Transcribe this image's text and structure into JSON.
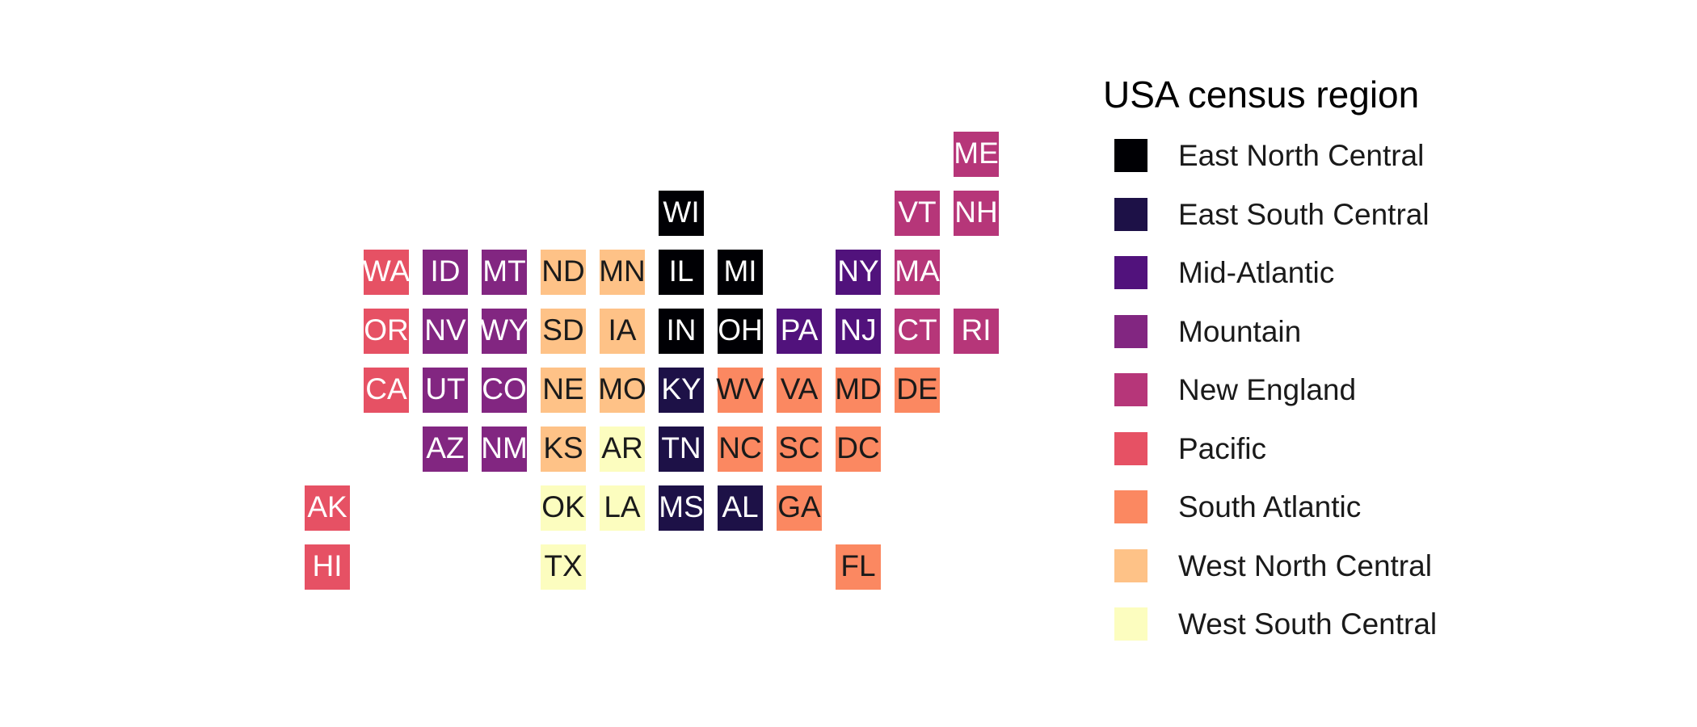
{
  "legend": {
    "title": "USA census region",
    "items": [
      {
        "label": "East North Central",
        "color": "#000004",
        "text_color": "#ffffff"
      },
      {
        "label": "East South Central",
        "color": "#1D1147",
        "text_color": "#ffffff"
      },
      {
        "label": "Mid-Atlantic",
        "color": "#51127C",
        "text_color": "#ffffff"
      },
      {
        "label": "Mountain",
        "color": "#822681",
        "text_color": "#ffffff"
      },
      {
        "label": "New England",
        "color": "#B63679",
        "text_color": "#ffffff"
      },
      {
        "label": "Pacific",
        "color": "#E65164",
        "text_color": "#ffffff"
      },
      {
        "label": "South Atlantic",
        "color": "#FB8861",
        "text_color": "#1a1a1a"
      },
      {
        "label": "West North Central",
        "color": "#FEC287",
        "text_color": "#1a1a1a"
      },
      {
        "label": "West South Central",
        "color": "#FCFDBF",
        "text_color": "#1a1a1a"
      }
    ]
  },
  "tiles": [
    {
      "abbr": "ME",
      "region": "New England",
      "col": 11,
      "row": 0
    },
    {
      "abbr": "WI",
      "region": "East North Central",
      "col": 6,
      "row": 1
    },
    {
      "abbr": "VT",
      "region": "New England",
      "col": 10,
      "row": 1
    },
    {
      "abbr": "NH",
      "region": "New England",
      "col": 11,
      "row": 1
    },
    {
      "abbr": "WA",
      "region": "Pacific",
      "col": 1,
      "row": 2
    },
    {
      "abbr": "ID",
      "region": "Mountain",
      "col": 2,
      "row": 2
    },
    {
      "abbr": "MT",
      "region": "Mountain",
      "col": 3,
      "row": 2
    },
    {
      "abbr": "ND",
      "region": "West North Central",
      "col": 4,
      "row": 2
    },
    {
      "abbr": "MN",
      "region": "West North Central",
      "col": 5,
      "row": 2
    },
    {
      "abbr": "IL",
      "region": "East North Central",
      "col": 6,
      "row": 2
    },
    {
      "abbr": "MI",
      "region": "East North Central",
      "col": 7,
      "row": 2
    },
    {
      "abbr": "NY",
      "region": "Mid-Atlantic",
      "col": 9,
      "row": 2
    },
    {
      "abbr": "MA",
      "region": "New England",
      "col": 10,
      "row": 2
    },
    {
      "abbr": "OR",
      "region": "Pacific",
      "col": 1,
      "row": 3
    },
    {
      "abbr": "NV",
      "region": "Mountain",
      "col": 2,
      "row": 3
    },
    {
      "abbr": "WY",
      "region": "Mountain",
      "col": 3,
      "row": 3
    },
    {
      "abbr": "SD",
      "region": "West North Central",
      "col": 4,
      "row": 3
    },
    {
      "abbr": "IA",
      "region": "West North Central",
      "col": 5,
      "row": 3
    },
    {
      "abbr": "IN",
      "region": "East North Central",
      "col": 6,
      "row": 3
    },
    {
      "abbr": "OH",
      "region": "East North Central",
      "col": 7,
      "row": 3
    },
    {
      "abbr": "PA",
      "region": "Mid-Atlantic",
      "col": 8,
      "row": 3
    },
    {
      "abbr": "NJ",
      "region": "Mid-Atlantic",
      "col": 9,
      "row": 3
    },
    {
      "abbr": "CT",
      "region": "New England",
      "col": 10,
      "row": 3
    },
    {
      "abbr": "RI",
      "region": "New England",
      "col": 11,
      "row": 3
    },
    {
      "abbr": "CA",
      "region": "Pacific",
      "col": 1,
      "row": 4
    },
    {
      "abbr": "UT",
      "region": "Mountain",
      "col": 2,
      "row": 4
    },
    {
      "abbr": "CO",
      "region": "Mountain",
      "col": 3,
      "row": 4
    },
    {
      "abbr": "NE",
      "region": "West North Central",
      "col": 4,
      "row": 4
    },
    {
      "abbr": "MO",
      "region": "West North Central",
      "col": 5,
      "row": 4
    },
    {
      "abbr": "KY",
      "region": "East South Central",
      "col": 6,
      "row": 4
    },
    {
      "abbr": "WV",
      "region": "South Atlantic",
      "col": 7,
      "row": 4
    },
    {
      "abbr": "VA",
      "region": "South Atlantic",
      "col": 8,
      "row": 4
    },
    {
      "abbr": "MD",
      "region": "South Atlantic",
      "col": 9,
      "row": 4
    },
    {
      "abbr": "DE",
      "region": "South Atlantic",
      "col": 10,
      "row": 4
    },
    {
      "abbr": "AZ",
      "region": "Mountain",
      "col": 2,
      "row": 5
    },
    {
      "abbr": "NM",
      "region": "Mountain",
      "col": 3,
      "row": 5
    },
    {
      "abbr": "KS",
      "region": "West North Central",
      "col": 4,
      "row": 5
    },
    {
      "abbr": "AR",
      "region": "West South Central",
      "col": 5,
      "row": 5
    },
    {
      "abbr": "TN",
      "region": "East South Central",
      "col": 6,
      "row": 5
    },
    {
      "abbr": "NC",
      "region": "South Atlantic",
      "col": 7,
      "row": 5
    },
    {
      "abbr": "SC",
      "region": "South Atlantic",
      "col": 8,
      "row": 5
    },
    {
      "abbr": "DC",
      "region": "South Atlantic",
      "col": 9,
      "row": 5
    },
    {
      "abbr": "AK",
      "region": "Pacific",
      "col": 0,
      "row": 6
    },
    {
      "abbr": "OK",
      "region": "West South Central",
      "col": 4,
      "row": 6
    },
    {
      "abbr": "LA",
      "region": "West South Central",
      "col": 5,
      "row": 6
    },
    {
      "abbr": "MS",
      "region": "East South Central",
      "col": 6,
      "row": 6
    },
    {
      "abbr": "AL",
      "region": "East South Central",
      "col": 7,
      "row": 6
    },
    {
      "abbr": "GA",
      "region": "South Atlantic",
      "col": 8,
      "row": 6
    },
    {
      "abbr": "HI",
      "region": "Pacific",
      "col": 0,
      "row": 7
    },
    {
      "abbr": "TX",
      "region": "West South Central",
      "col": 4,
      "row": 7
    },
    {
      "abbr": "FL",
      "region": "South Atlantic",
      "col": 9,
      "row": 7
    }
  ]
}
